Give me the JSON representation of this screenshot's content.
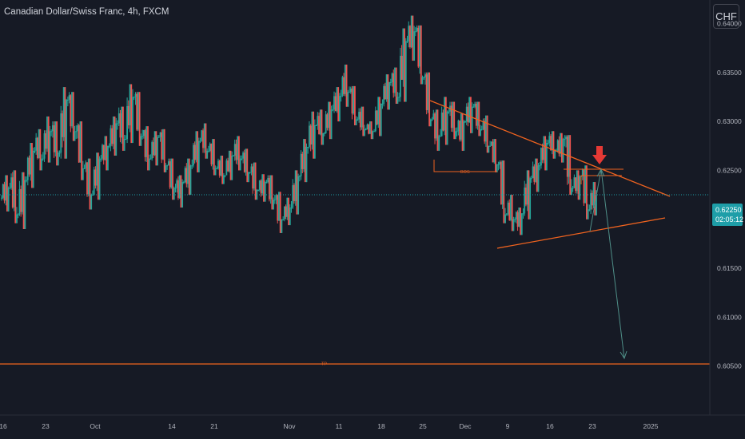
{
  "title": "Canadian Dollar/Swiss Franc, 4h, FXCM",
  "currency_button": "CHF",
  "current_price": {
    "price": "0.62250",
    "countdown": "02:05:12"
  },
  "colors": {
    "background": "#161a25",
    "up": "#26a69a",
    "down": "#ef5350",
    "trendline": "#f0631f",
    "arrow_down": "#e53935",
    "projection": "#4f8f88",
    "axis_text": "#b2b5be",
    "price_tag": "#1e9ea8"
  },
  "chart_data": {
    "type": "candlestick",
    "ylim": [
      0.6,
      0.6424
    ],
    "y_ticks": [
      "0.64000",
      "0.63500",
      "0.63000",
      "0.62500",
      "0.62000",
      "0.61500",
      "0.61000",
      "0.60500"
    ],
    "x_ticks": [
      "16",
      "23",
      "Oct",
      "14",
      "21",
      "Nov",
      "11",
      "18",
      "25",
      "Dec",
      "9",
      "16",
      "23",
      "2025"
    ],
    "candles": [
      {
        "date": "Sep 16",
        "open": 0.6222,
        "high": 0.6245,
        "low": 0.6208,
        "close": 0.6232
      },
      {
        "date": "Sep 17",
        "open": 0.6232,
        "high": 0.625,
        "low": 0.6196,
        "close": 0.6205
      },
      {
        "date": "Sep 18",
        "open": 0.6205,
        "high": 0.6248,
        "low": 0.619,
        "close": 0.624
      },
      {
        "date": "Sep 19",
        "open": 0.624,
        "high": 0.6278,
        "low": 0.6232,
        "close": 0.627
      },
      {
        "date": "Sep 20",
        "open": 0.627,
        "high": 0.6292,
        "low": 0.625,
        "close": 0.6262
      },
      {
        "date": "Sep 23",
        "open": 0.6262,
        "high": 0.6305,
        "low": 0.6258,
        "close": 0.629
      },
      {
        "date": "Sep 24",
        "open": 0.629,
        "high": 0.63,
        "low": 0.6255,
        "close": 0.6268
      },
      {
        "date": "Sep 25",
        "open": 0.6268,
        "high": 0.6335,
        "low": 0.6262,
        "close": 0.6322
      },
      {
        "date": "Sep 26",
        "open": 0.6322,
        "high": 0.633,
        "low": 0.628,
        "close": 0.629
      },
      {
        "date": "Sep 27",
        "open": 0.629,
        "high": 0.63,
        "low": 0.624,
        "close": 0.6252
      },
      {
        "date": "Sep 30",
        "open": 0.6252,
        "high": 0.6262,
        "low": 0.621,
        "close": 0.6225
      },
      {
        "date": "Oct 1",
        "open": 0.6225,
        "high": 0.6268,
        "low": 0.622,
        "close": 0.6262
      },
      {
        "date": "Oct 2",
        "open": 0.6262,
        "high": 0.6285,
        "low": 0.625,
        "close": 0.6275
      },
      {
        "date": "Oct 3",
        "open": 0.6275,
        "high": 0.6305,
        "low": 0.6265,
        "close": 0.6298
      },
      {
        "date": "Oct 4",
        "open": 0.6298,
        "high": 0.6315,
        "low": 0.627,
        "close": 0.6282
      },
      {
        "date": "Oct 7",
        "open": 0.6282,
        "high": 0.6338,
        "low": 0.6278,
        "close": 0.6325
      },
      {
        "date": "Oct 8",
        "open": 0.6325,
        "high": 0.633,
        "low": 0.6275,
        "close": 0.6285
      },
      {
        "date": "Oct 9",
        "open": 0.6285,
        "high": 0.6295,
        "low": 0.625,
        "close": 0.6262
      },
      {
        "date": "Oct 10",
        "open": 0.6262,
        "high": 0.629,
        "low": 0.6255,
        "close": 0.6284
      },
      {
        "date": "Oct 11",
        "open": 0.6284,
        "high": 0.6292,
        "low": 0.6248,
        "close": 0.6255
      },
      {
        "date": "Oct 14",
        "open": 0.6255,
        "high": 0.6262,
        "low": 0.622,
        "close": 0.6232
      },
      {
        "date": "Oct 15",
        "open": 0.6232,
        "high": 0.6245,
        "low": 0.6212,
        "close": 0.6238
      },
      {
        "date": "Oct 16",
        "open": 0.6238,
        "high": 0.6262,
        "low": 0.6225,
        "close": 0.6255
      },
      {
        "date": "Oct 17",
        "open": 0.6255,
        "high": 0.629,
        "low": 0.6248,
        "close": 0.628
      },
      {
        "date": "Oct 18",
        "open": 0.628,
        "high": 0.6298,
        "low": 0.6262,
        "close": 0.627
      },
      {
        "date": "Oct 21",
        "open": 0.627,
        "high": 0.6282,
        "low": 0.6245,
        "close": 0.6252
      },
      {
        "date": "Oct 22",
        "open": 0.6252,
        "high": 0.6265,
        "low": 0.6236,
        "close": 0.6245
      },
      {
        "date": "Oct 23",
        "open": 0.6245,
        "high": 0.627,
        "low": 0.624,
        "close": 0.6265
      },
      {
        "date": "Oct 24",
        "open": 0.6265,
        "high": 0.6285,
        "low": 0.625,
        "close": 0.6262
      },
      {
        "date": "Oct 25",
        "open": 0.6262,
        "high": 0.6272,
        "low": 0.6238,
        "close": 0.6248
      },
      {
        "date": "Oct 28",
        "open": 0.6248,
        "high": 0.6258,
        "low": 0.622,
        "close": 0.623
      },
      {
        "date": "Oct 29",
        "open": 0.623,
        "high": 0.6246,
        "low": 0.6218,
        "close": 0.6238
      },
      {
        "date": "Oct 30",
        "open": 0.6238,
        "high": 0.6245,
        "low": 0.621,
        "close": 0.622
      },
      {
        "date": "Oct 31",
        "open": 0.622,
        "high": 0.6228,
        "low": 0.6186,
        "close": 0.62
      },
      {
        "date": "Nov 1",
        "open": 0.62,
        "high": 0.6222,
        "low": 0.6194,
        "close": 0.6212
      },
      {
        "date": "Nov 4",
        "open": 0.6212,
        "high": 0.625,
        "low": 0.6205,
        "close": 0.6244
      },
      {
        "date": "Nov 5",
        "open": 0.6244,
        "high": 0.6282,
        "low": 0.6238,
        "close": 0.6274
      },
      {
        "date": "Nov 6",
        "open": 0.6274,
        "high": 0.631,
        "low": 0.6262,
        "close": 0.6296
      },
      {
        "date": "Nov 7",
        "open": 0.6296,
        "high": 0.6312,
        "low": 0.6276,
        "close": 0.6288
      },
      {
        "date": "Nov 8",
        "open": 0.6288,
        "high": 0.632,
        "low": 0.6282,
        "close": 0.6312
      },
      {
        "date": "Nov 11",
        "open": 0.6312,
        "high": 0.6335,
        "low": 0.63,
        "close": 0.6326
      },
      {
        "date": "Nov 12",
        "open": 0.6326,
        "high": 0.6358,
        "low": 0.6315,
        "close": 0.633
      },
      {
        "date": "Nov 13",
        "open": 0.633,
        "high": 0.6336,
        "low": 0.6296,
        "close": 0.6302
      },
      {
        "date": "Nov 14",
        "open": 0.6302,
        "high": 0.6315,
        "low": 0.6285,
        "close": 0.6292
      },
      {
        "date": "Nov 15",
        "open": 0.6292,
        "high": 0.63,
        "low": 0.6282,
        "close": 0.629
      },
      {
        "date": "Nov 18",
        "open": 0.629,
        "high": 0.6325,
        "low": 0.6285,
        "close": 0.6318
      },
      {
        "date": "Nov 19",
        "open": 0.6318,
        "high": 0.6348,
        "low": 0.6312,
        "close": 0.634
      },
      {
        "date": "Nov 20",
        "open": 0.634,
        "high": 0.6355,
        "low": 0.6318,
        "close": 0.6325
      },
      {
        "date": "Nov 21",
        "open": 0.6325,
        "high": 0.6395,
        "low": 0.632,
        "close": 0.6382
      },
      {
        "date": "Nov 22",
        "open": 0.6382,
        "high": 0.6408,
        "low": 0.6362,
        "close": 0.6392
      },
      {
        "date": "Nov 25",
        "open": 0.6392,
        "high": 0.6398,
        "low": 0.6338,
        "close": 0.6345
      },
      {
        "date": "Nov 26",
        "open": 0.6345,
        "high": 0.635,
        "low": 0.6295,
        "close": 0.6302
      },
      {
        "date": "Nov 27",
        "open": 0.6302,
        "high": 0.6312,
        "low": 0.627,
        "close": 0.6285
      },
      {
        "date": "Nov 28",
        "open": 0.6285,
        "high": 0.6325,
        "low": 0.6276,
        "close": 0.631
      },
      {
        "date": "Nov 29",
        "open": 0.631,
        "high": 0.632,
        "low": 0.6282,
        "close": 0.629
      },
      {
        "date": "Dec 2",
        "open": 0.629,
        "high": 0.6308,
        "low": 0.627,
        "close": 0.63
      },
      {
        "date": "Dec 3",
        "open": 0.63,
        "high": 0.6325,
        "low": 0.6288,
        "close": 0.6315
      },
      {
        "date": "Dec 4",
        "open": 0.6315,
        "high": 0.632,
        "low": 0.6285,
        "close": 0.6292
      },
      {
        "date": "Dec 5",
        "open": 0.6292,
        "high": 0.6306,
        "low": 0.6268,
        "close": 0.6275
      },
      {
        "date": "Dec 6",
        "open": 0.6275,
        "high": 0.6282,
        "low": 0.6248,
        "close": 0.6256
      },
      {
        "date": "Dec 9",
        "open": 0.6256,
        "high": 0.626,
        "low": 0.6196,
        "close": 0.6205
      },
      {
        "date": "Dec 10",
        "open": 0.6205,
        "high": 0.6225,
        "low": 0.6188,
        "close": 0.62
      },
      {
        "date": "Dec 11",
        "open": 0.62,
        "high": 0.6212,
        "low": 0.6184,
        "close": 0.6206
      },
      {
        "date": "Dec 12",
        "open": 0.6206,
        "high": 0.625,
        "low": 0.62,
        "close": 0.6242
      },
      {
        "date": "Dec 13",
        "open": 0.6242,
        "high": 0.6262,
        "low": 0.6228,
        "close": 0.6255
      },
      {
        "date": "Dec 16",
        "open": 0.6255,
        "high": 0.6285,
        "low": 0.625,
        "close": 0.6278
      },
      {
        "date": "Dec 17",
        "open": 0.6278,
        "high": 0.629,
        "low": 0.6262,
        "close": 0.627
      },
      {
        "date": "Dec 18",
        "open": 0.627,
        "high": 0.6288,
        "low": 0.6258,
        "close": 0.6282
      },
      {
        "date": "Dec 19",
        "open": 0.6282,
        "high": 0.6286,
        "low": 0.6225,
        "close": 0.6232
      },
      {
        "date": "Dec 20",
        "open": 0.6232,
        "high": 0.625,
        "low": 0.622,
        "close": 0.6244
      },
      {
        "date": "Dec 23",
        "open": 0.6244,
        "high": 0.6255,
        "low": 0.62,
        "close": 0.621
      },
      {
        "date": "Dec 24",
        "open": 0.621,
        "high": 0.6238,
        "low": 0.6204,
        "close": 0.6225
      }
    ],
    "annotations": {
      "bos_label": "BOS",
      "tp_label": "TP",
      "tp_level": 0.6059,
      "bos_level": 0.6266,
      "target_level": 0.6064
    }
  }
}
